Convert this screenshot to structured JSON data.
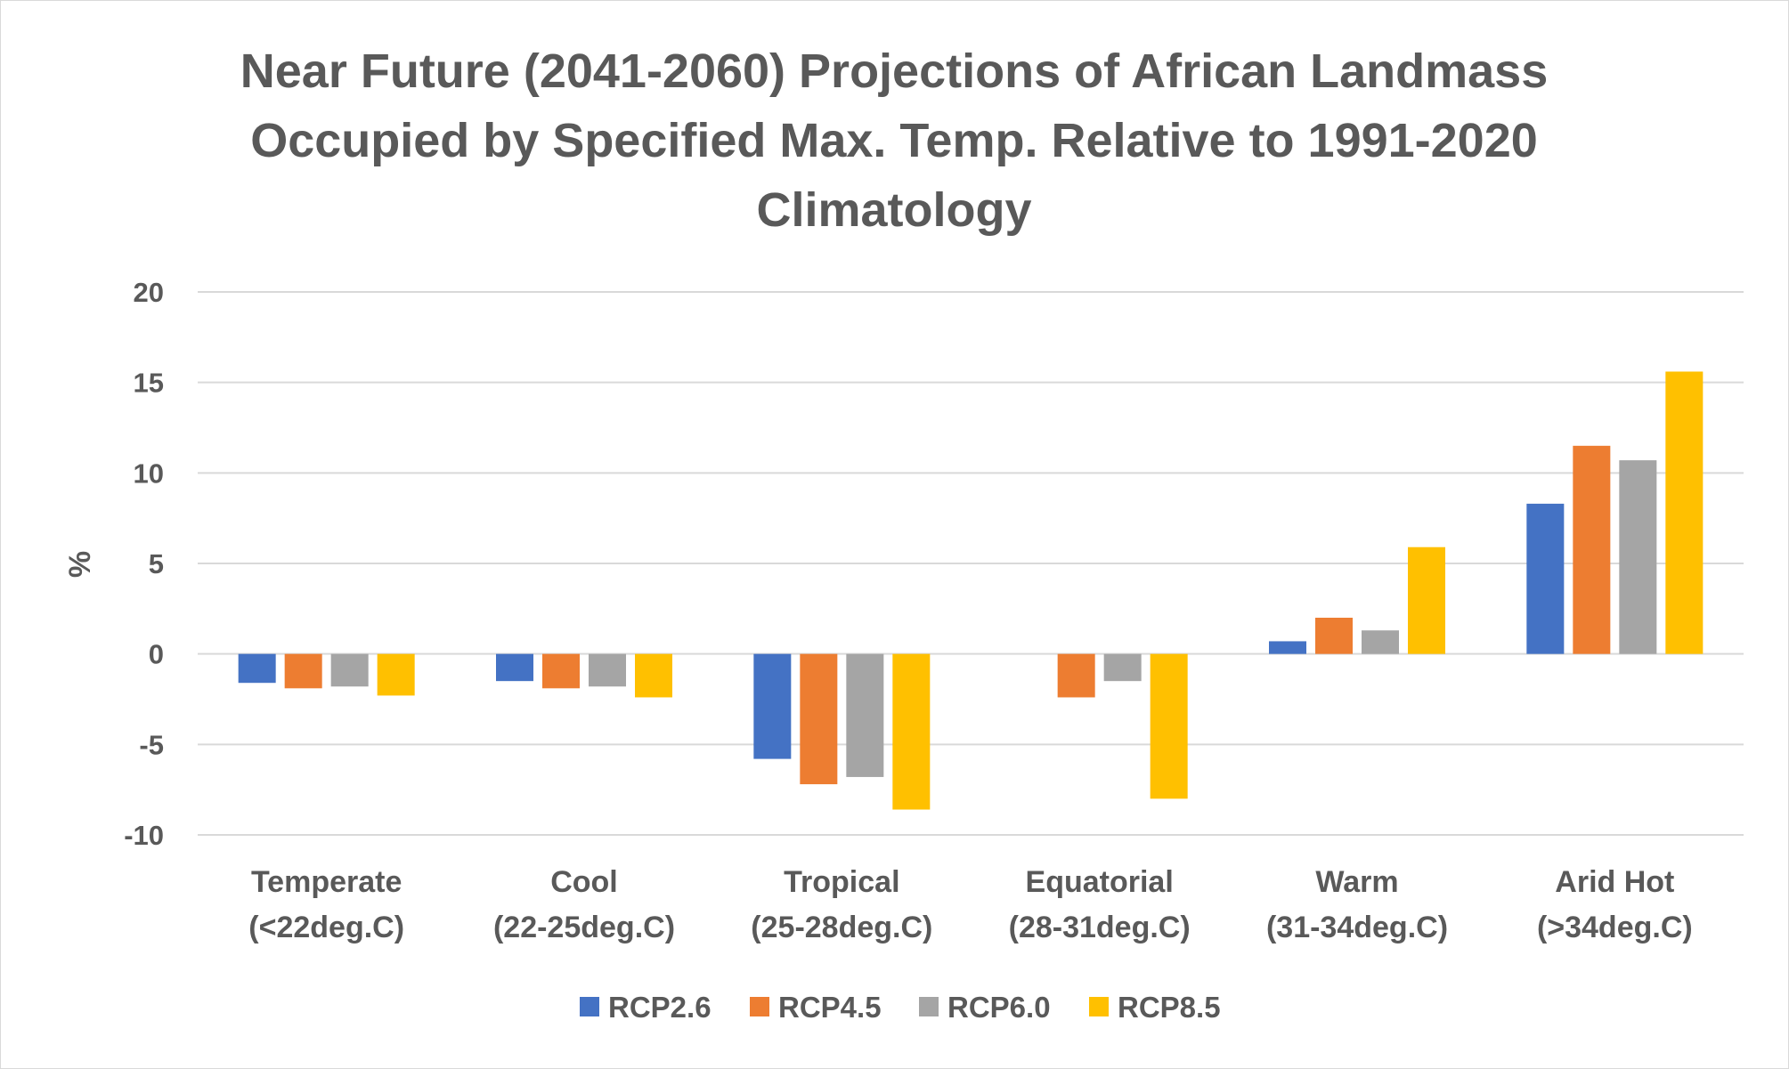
{
  "chart_data": {
    "type": "bar",
    "title": [
      "Near Future (2041-2060) Projections of African Landmass",
      "Occupied by Specified Max. Temp. Relative to 1991-2020",
      "Climatology"
    ],
    "ylabel": "%",
    "xlabel": "",
    "ylim": [
      -10,
      20
    ],
    "yticks": [
      "20",
      "15",
      "10",
      "5",
      "0",
      "-5",
      "-10"
    ],
    "grid": true,
    "legend_position": "bottom",
    "categories": [
      [
        "Temperate",
        "(<22deg.C)"
      ],
      [
        "Cool",
        "(22-25deg.C)"
      ],
      [
        "Tropical",
        "(25-28deg.C)"
      ],
      [
        "Equatorial",
        "(28-31deg.C)"
      ],
      [
        "Warm",
        "(31-34deg.C)"
      ],
      [
        "Arid Hot",
        "(>34deg.C)"
      ]
    ],
    "series": [
      {
        "name": "RCP2.6",
        "color": "#4472C4",
        "values": [
          -1.6,
          -1.5,
          -5.8,
          0,
          0.7,
          8.3
        ]
      },
      {
        "name": "RCP4.5",
        "color": "#ED7D31",
        "values": [
          -1.9,
          -1.9,
          -7.2,
          -2.4,
          2.0,
          11.5
        ]
      },
      {
        "name": "RCP6.0",
        "color": "#A5A5A5",
        "values": [
          -1.8,
          -1.8,
          -6.8,
          -1.5,
          1.3,
          10.7
        ]
      },
      {
        "name": "RCP8.5",
        "color": "#FFC000",
        "values": [
          -2.3,
          -2.4,
          -8.6,
          -8.0,
          5.9,
          15.6
        ]
      }
    ]
  }
}
